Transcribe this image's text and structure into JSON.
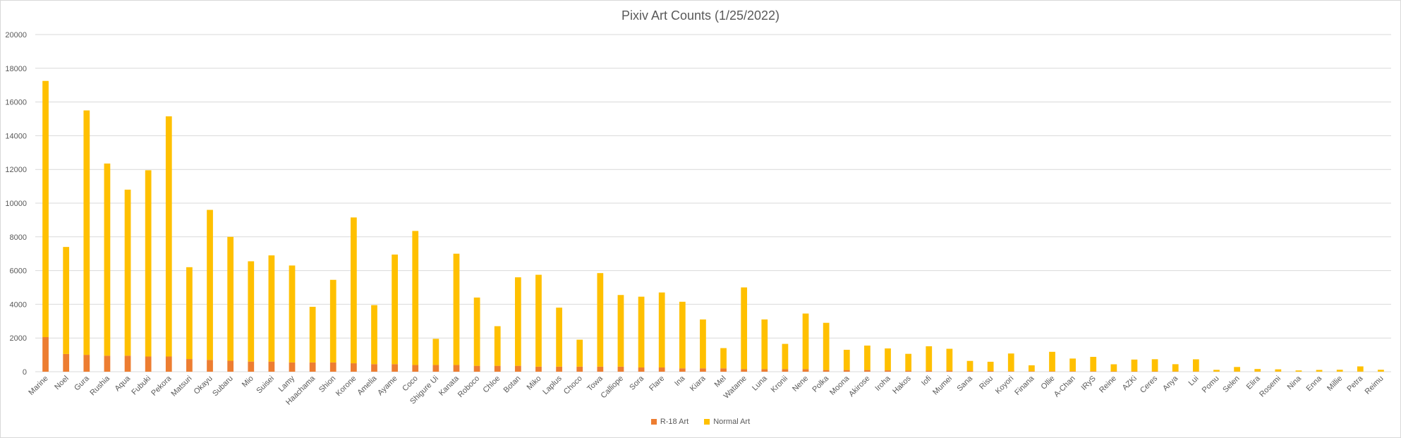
{
  "chart_data": {
    "type": "bar",
    "stacked": true,
    "title": "Pixiv Art Counts (1/25/2022)",
    "xlabel": "",
    "ylabel": "",
    "ylim": [
      0,
      20000
    ],
    "yticks": [
      0,
      2000,
      4000,
      6000,
      8000,
      10000,
      12000,
      14000,
      16000,
      18000,
      20000
    ],
    "grid": true,
    "legend_position": "bottom",
    "categories": [
      "Marine",
      "Noel",
      "Gura",
      "Rushia",
      "Aqua",
      "Fubuki",
      "Pekora",
      "Matsuri",
      "Okayu",
      "Subaru",
      "Mio",
      "Suisei",
      "Lamy",
      "Haachama",
      "Shion",
      "Korone",
      "Amelia",
      "Ayame",
      "Coco",
      "Shigure Ui",
      "Kanata",
      "Roboco",
      "Chloe",
      "Botan",
      "Miko",
      "Laplus",
      "Choco",
      "Towa",
      "Calliope",
      "Sora",
      "Flare",
      "Ina",
      "Kiara",
      "Mel",
      "Watame",
      "Luna",
      "Kronii",
      "Nene",
      "Polka",
      "Moona",
      "Akirose",
      "Iroha",
      "Hakos",
      "Iofi",
      "Mumei",
      "Sana",
      "Risu",
      "Koyori",
      "Finana",
      "Ollie",
      "A-Chan",
      "IRyS",
      "Reine",
      "AZKi",
      "Ceres",
      "Anya",
      "Lui",
      "Pomu",
      "Selen",
      "Elira",
      "Rosemi",
      "Nina",
      "Enna",
      "Millie",
      "Petra",
      "Reimu"
    ],
    "series": [
      {
        "name": "R-18 Art",
        "color": "#ED7D31",
        "values": [
          2050,
          1050,
          1000,
          950,
          950,
          900,
          900,
          750,
          700,
          650,
          600,
          600,
          550,
          550,
          550,
          500,
          450,
          450,
          400,
          400,
          400,
          350,
          350,
          350,
          300,
          300,
          300,
          300,
          300,
          250,
          250,
          200,
          200,
          200,
          150,
          150,
          150,
          150,
          100,
          100,
          100,
          80,
          60,
          60,
          60,
          40,
          40,
          30,
          30,
          30,
          30,
          30,
          20,
          20,
          20,
          15,
          15,
          10,
          10,
          10,
          10,
          5,
          5,
          5,
          5,
          5
        ]
      },
      {
        "name": "Normal Art",
        "color": "#FFC000",
        "values": [
          15200,
          6350,
          14500,
          11400,
          9850,
          11050,
          14250,
          5450,
          8900,
          7350,
          5950,
          6300,
          5750,
          3300,
          4900,
          8650,
          3500,
          6500,
          7950,
          1550,
          6600,
          4050,
          2350,
          5250,
          5450,
          3500,
          1600,
          5550,
          4250,
          4200,
          4450,
          3950,
          2900,
          1200,
          4850,
          2950,
          1500,
          3300,
          2800,
          1200,
          1450,
          1300,
          1000,
          1450,
          1300,
          600,
          550,
          1050,
          350,
          1150,
          750,
          850,
          420,
          700,
          720,
          430,
          720,
          100,
          270,
          150,
          130,
          70,
          100,
          110,
          310,
          110
        ]
      }
    ]
  }
}
